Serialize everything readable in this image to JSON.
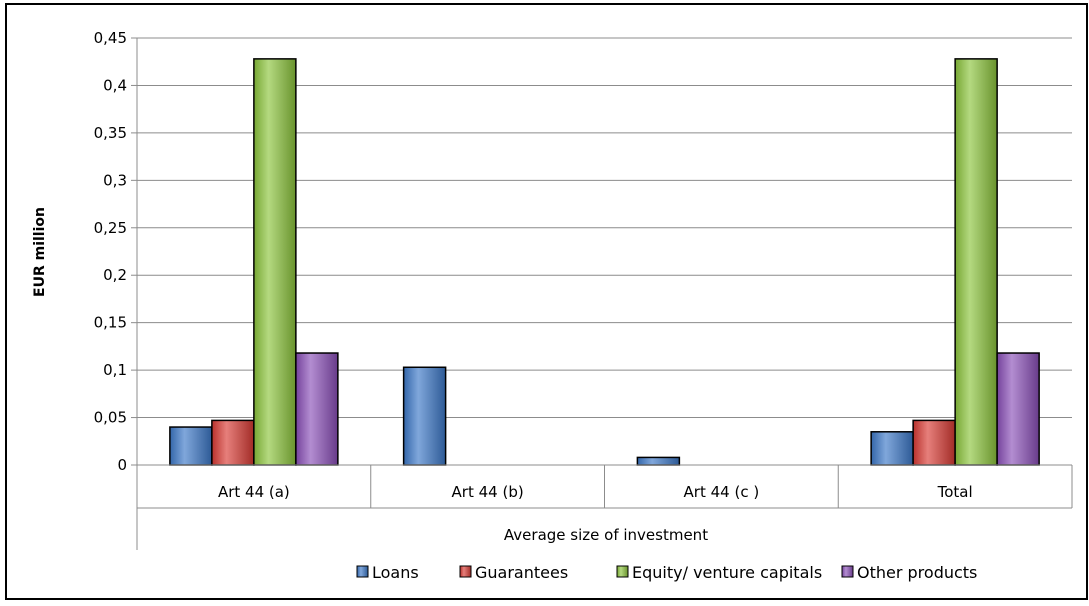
{
  "chart_data": {
    "type": "bar",
    "title": "",
    "xlabel": "Average size of investment",
    "ylabel": "EUR million",
    "ylim": [
      0,
      0.45
    ],
    "yticks": [
      "0",
      "0,05",
      "0,1",
      "0,15",
      "0,2",
      "0,25",
      "0,3",
      "0,35",
      "0,4",
      "0,45"
    ],
    "categories": [
      "Art 44 (a)",
      "Art 44 (b)",
      "Art 44 (c )",
      "Total"
    ],
    "series": [
      {
        "name": "Loans",
        "color": "#3C78C8",
        "values": [
          0.04,
          0.103,
          0.008,
          0.035
        ]
      },
      {
        "name": "Guarantees",
        "color": "#D83A34",
        "values": [
          0.047,
          0,
          0,
          0.047
        ]
      },
      {
        "name": "Equity/ venture capitals",
        "color": "#8CC43C",
        "values": [
          0.428,
          0,
          0,
          0.428
        ]
      },
      {
        "name": "Other products",
        "color": "#8A4FB8",
        "values": [
          0.118,
          0,
          0,
          0.118
        ]
      }
    ],
    "grid": true,
    "legend_position": "bottom"
  }
}
